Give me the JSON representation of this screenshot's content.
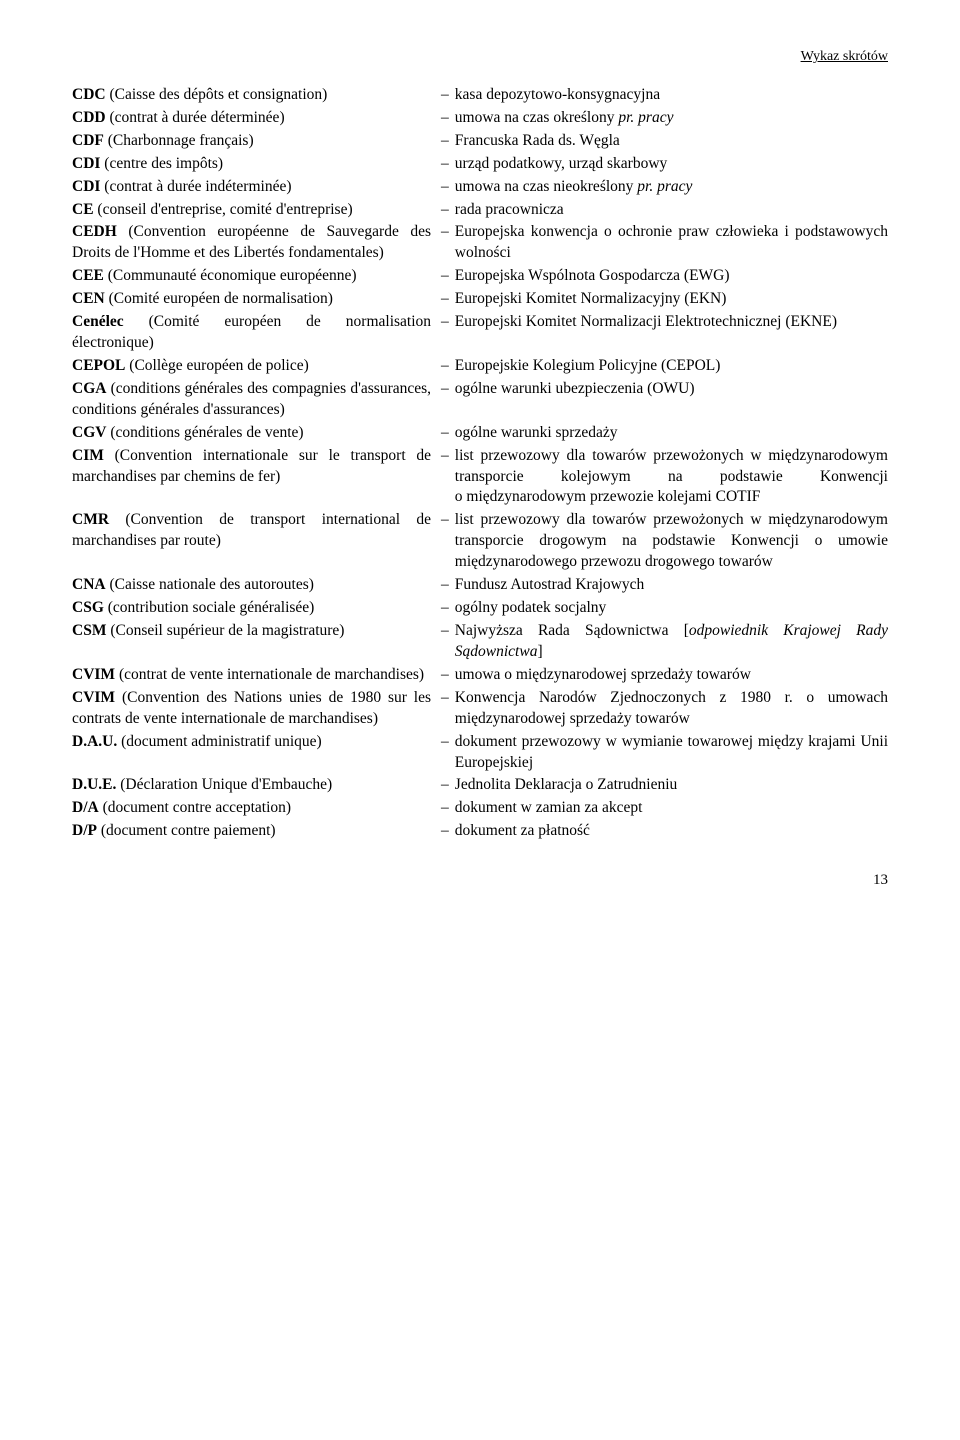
{
  "header": "Wykaz skrótów",
  "page_number": "13",
  "entries": [
    {
      "abbr": "CDC",
      "expansion": " (Caisse des dépôts et consignation)",
      "def_plain": "kasa depozytowo-konsygnacyjna"
    },
    {
      "abbr": "CDD",
      "expansion": " (contrat à durée déterminée)",
      "def_html": "umowa na czas określony <span class=\"italic\">pr. pracy</span>"
    },
    {
      "abbr": "CDF",
      "expansion": " (Charbonnage français)",
      "def_plain": "Francuska Rada ds. Węgla"
    },
    {
      "abbr": "CDI",
      "expansion": " (centre des impôts)",
      "def_plain": "urząd podatkowy, urząd skarbowy"
    },
    {
      "abbr": "CDI",
      "expansion": " (contrat à durée indéterminée)",
      "def_html": "umowa na czas nieokreślony <span class=\"italic\">pr. pracy</span>"
    },
    {
      "abbr": "CE",
      "expansion": " (conseil d'entreprise, comité d'entreprise)",
      "def_plain": "rada pracownicza"
    },
    {
      "abbr": "CEDH",
      "expansion": " (Convention européenne de Sauvegarde des Droits de l'Homme et des Libertés fondamentales)",
      "def_plain": "Europejska konwencja o ochronie praw człowieka i podstawowych wolności"
    },
    {
      "abbr": "CEE",
      "expansion": " (Communauté économique européenne)",
      "def_plain": "Europejska Wspólnota Gospodarcza (EWG)"
    },
    {
      "abbr": "CEN",
      "expansion": " (Comité européen de normalisation)",
      "def_plain": "Europejski Komitet Normalizacyjny (EKN)"
    },
    {
      "abbr": "Cenélec",
      "expansion": " (Comité européen de normalisation électronique)",
      "def_plain": "Europejski Komitet Normalizacji Elektrotechnicznej (EKNE)"
    },
    {
      "abbr": "CEPOL",
      "expansion": " (Collège européen de police)",
      "def_plain": "Europejskie Kolegium Policyjne (CEPOL)"
    },
    {
      "abbr": "CGA",
      "expansion": " (conditions générales des compagnies d'assurances, conditions générales d'assurances)",
      "def_plain": "ogólne warunki ubezpieczenia (OWU)"
    },
    {
      "abbr": "CGV",
      "expansion": " (conditions générales de vente)",
      "def_plain": "ogólne warunki sprzedaży"
    },
    {
      "abbr": "CIM",
      "expansion": " (Convention internationale sur le transport de marchandises par chemins de fer)",
      "def_plain": "list przewozowy dla towarów przewożonych w międzynarodowym transporcie kolejowym na podstawie Konwencji o międzynarodowym przewozie kolejami COTIF"
    },
    {
      "abbr": "CMR",
      "expansion": " (Convention de transport international de marchandises par route)",
      "def_plain": "list przewozowy dla towarów przewożonych w międzynarodowym transporcie drogowym na podstawie Konwencji o umowie międzynarodowego przewozu drogowego towarów"
    },
    {
      "abbr": "CNA",
      "expansion": " (Caisse nationale des autoroutes)",
      "def_plain": "Fundusz Autostrad Krajowych"
    },
    {
      "abbr": "CSG",
      "expansion": " (contribution sociale généralisée)",
      "def_plain": "ogólny podatek socjalny"
    },
    {
      "abbr": "CSM",
      "expansion": " (Conseil supérieur de la magistrature)",
      "def_html": "Najwyższa Rada Sądownictwa [<span class=\"italic\">odpowiednik Krajowej Rady Sądownictwa</span>]"
    },
    {
      "abbr": "CVIM",
      "expansion": " (contrat de vente internationale de marchandises)",
      "def_plain": "umowa o międzynarodowej sprzedaży towarów"
    },
    {
      "abbr": "CVIM",
      "expansion": " (Convention des Nations unies de 1980 sur les contrats de vente internationale de marchandises)",
      "def_plain": "Konwencja Narodów Zjednoczonych z 1980 r. o umowach międzynarodowej sprzedaży towarów"
    },
    {
      "abbr": "D.A.U.",
      "expansion": " (document administratif unique)",
      "def_plain": "dokument przewozowy w wymianie towarowej między krajami Unii Europejskiej"
    },
    {
      "abbr": "D.U.E.",
      "expansion": " (Déclaration Unique d'Embauche)",
      "def_plain": "Jednolita Deklaracja o Zatrudnieniu"
    },
    {
      "abbr": "D/A",
      "expansion": " (document contre acceptation)",
      "def_plain": "dokument w zamian za akcept"
    },
    {
      "abbr": "D/P",
      "expansion": " (document contre paiement)",
      "def_plain": "dokument za płatność"
    }
  ]
}
